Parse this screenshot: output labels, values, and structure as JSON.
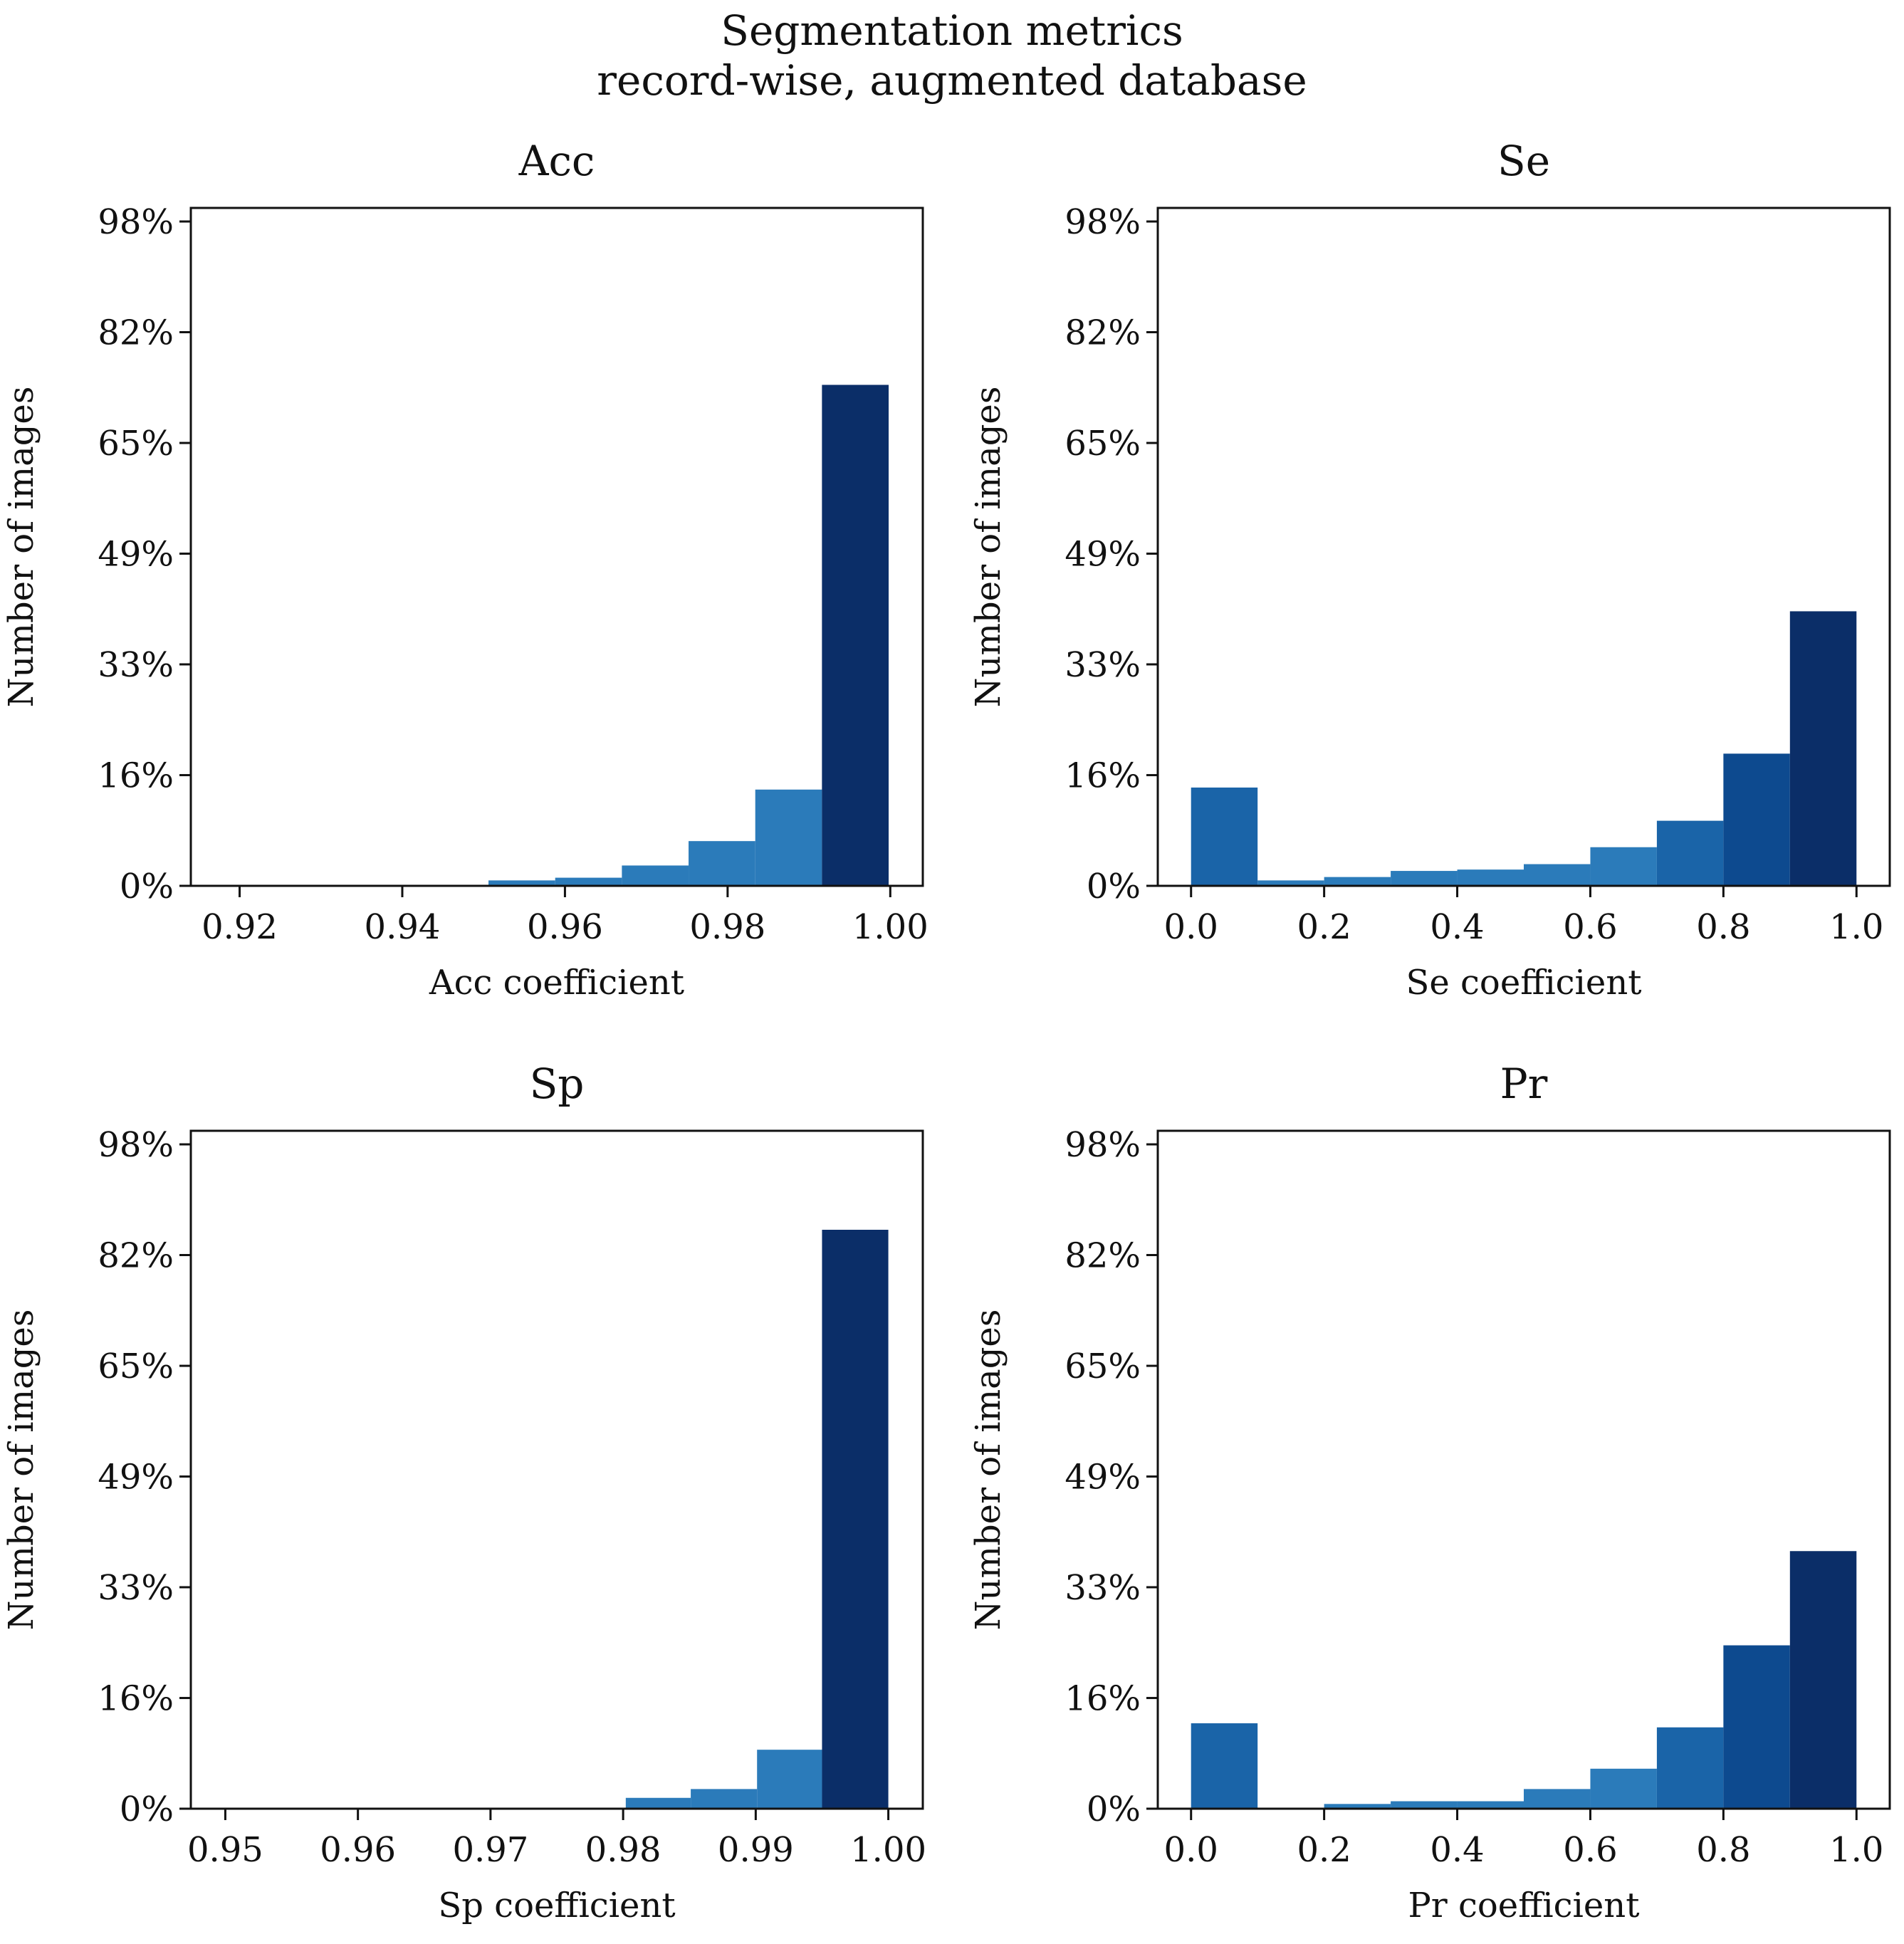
{
  "figure": {
    "title_line1": "Segmentation metrics",
    "title_line2": "record-wise, augmented database"
  },
  "palette": {
    "light": "#4a90c8",
    "mid": "#2b7bba",
    "midDark": "#1a64a8",
    "dark": "#0d4a8f",
    "darkest": "#0b2e68",
    "axis": "#111111"
  },
  "chart_data": [
    {
      "id": "acc",
      "type": "bar",
      "title": "Acc",
      "xlabel": "Acc coefficient",
      "ylabel": "Number of images",
      "xlim": [
        0.914,
        1.004
      ],
      "ylim": [
        0,
        100
      ],
      "xticks": [
        0.92,
        0.94,
        0.96,
        0.98,
        1.0
      ],
      "xtick_labels": [
        "0.92",
        "0.94",
        "0.96",
        "0.98",
        "1.00"
      ],
      "yticks": [
        0,
        16.33,
        32.67,
        49,
        65.33,
        81.67,
        98
      ],
      "ytick_labels": [
        "0%",
        "16%",
        "33%",
        "49%",
        "65%",
        "82%",
        "98%"
      ],
      "bins": [
        {
          "x0": 0.9506,
          "x1": 0.9588,
          "value": 0.8
        },
        {
          "x0": 0.9588,
          "x1": 0.967,
          "value": 1.2
        },
        {
          "x0": 0.967,
          "x1": 0.9752,
          "value": 3.0
        },
        {
          "x0": 0.9752,
          "x1": 0.9834,
          "value": 6.6
        },
        {
          "x0": 0.9834,
          "x1": 0.9916,
          "value": 14.2
        },
        {
          "x0": 0.9916,
          "x1": 0.9998,
          "value": 73.9
        }
      ]
    },
    {
      "id": "se",
      "type": "bar",
      "title": "Se",
      "xlabel": "Se coefficient",
      "ylabel": "Number of images",
      "xlim": [
        -0.05,
        1.05
      ],
      "ylim": [
        0,
        100
      ],
      "xticks": [
        0.0,
        0.2,
        0.4,
        0.6,
        0.8,
        1.0
      ],
      "xtick_labels": [
        "0.0",
        "0.2",
        "0.4",
        "0.6",
        "0.8",
        "1.0"
      ],
      "yticks": [
        0,
        16.33,
        32.67,
        49,
        65.33,
        81.67,
        98
      ],
      "ytick_labels": [
        "0%",
        "16%",
        "33%",
        "49%",
        "65%",
        "82%",
        "98%"
      ],
      "bins": [
        {
          "x0": 0.0,
          "x1": 0.1,
          "value": 14.5
        },
        {
          "x0": 0.1,
          "x1": 0.2,
          "value": 0.8
        },
        {
          "x0": 0.2,
          "x1": 0.3,
          "value": 1.3
        },
        {
          "x0": 0.3,
          "x1": 0.4,
          "value": 2.2
        },
        {
          "x0": 0.4,
          "x1": 0.5,
          "value": 2.4
        },
        {
          "x0": 0.5,
          "x1": 0.6,
          "value": 3.2
        },
        {
          "x0": 0.6,
          "x1": 0.7,
          "value": 5.7
        },
        {
          "x0": 0.7,
          "x1": 0.8,
          "value": 9.6
        },
        {
          "x0": 0.8,
          "x1": 0.9,
          "value": 19.5
        },
        {
          "x0": 0.9,
          "x1": 1.0,
          "value": 40.5
        }
      ]
    },
    {
      "id": "sp",
      "type": "bar",
      "title": "Sp",
      "xlabel": "Sp coefficient",
      "ylabel": "Number of images",
      "xlim": [
        0.9474,
        1.0026
      ],
      "ylim": [
        0,
        100
      ],
      "xticks": [
        0.95,
        0.96,
        0.97,
        0.98,
        0.99,
        1.0
      ],
      "xtick_labels": [
        "0.95",
        "0.96",
        "0.97",
        "0.98",
        "0.99",
        "1.00"
      ],
      "yticks": [
        0,
        16.33,
        32.67,
        49,
        65.33,
        81.67,
        98
      ],
      "ytick_labels": [
        "0%",
        "16%",
        "33%",
        "49%",
        "65%",
        "82%",
        "98%"
      ],
      "bins": [
        {
          "x0": 0.9802,
          "x1": 0.9851,
          "value": 1.6
        },
        {
          "x0": 0.9851,
          "x1": 0.9901,
          "value": 2.9
        },
        {
          "x0": 0.9901,
          "x1": 0.995,
          "value": 8.7
        },
        {
          "x0": 0.995,
          "x1": 1.0,
          "value": 85.4
        }
      ]
    },
    {
      "id": "pr",
      "type": "bar",
      "title": "Pr",
      "xlabel": "Pr coefficient",
      "ylabel": "Number of images",
      "xlim": [
        -0.05,
        1.05
      ],
      "ylim": [
        0,
        100
      ],
      "xticks": [
        0.0,
        0.2,
        0.4,
        0.6,
        0.8,
        1.0
      ],
      "xtick_labels": [
        "0.0",
        "0.2",
        "0.4",
        "0.6",
        "0.8",
        "1.0"
      ],
      "yticks": [
        0,
        16.33,
        32.67,
        49,
        65.33,
        81.67,
        98
      ],
      "ytick_labels": [
        "0%",
        "16%",
        "33%",
        "49%",
        "65%",
        "82%",
        "98%"
      ],
      "bins": [
        {
          "x0": 0.0,
          "x1": 0.1,
          "value": 12.6
        },
        {
          "x0": 0.1,
          "x1": 0.2,
          "value": 0.0
        },
        {
          "x0": 0.2,
          "x1": 0.3,
          "value": 0.7
        },
        {
          "x0": 0.3,
          "x1": 0.4,
          "value": 1.1
        },
        {
          "x0": 0.4,
          "x1": 0.5,
          "value": 1.1
        },
        {
          "x0": 0.5,
          "x1": 0.6,
          "value": 2.9
        },
        {
          "x0": 0.6,
          "x1": 0.7,
          "value": 5.9
        },
        {
          "x0": 0.7,
          "x1": 0.8,
          "value": 12.0
        },
        {
          "x0": 0.8,
          "x1": 0.9,
          "value": 24.1
        },
        {
          "x0": 0.9,
          "x1": 1.0,
          "value": 38.0
        }
      ]
    }
  ]
}
